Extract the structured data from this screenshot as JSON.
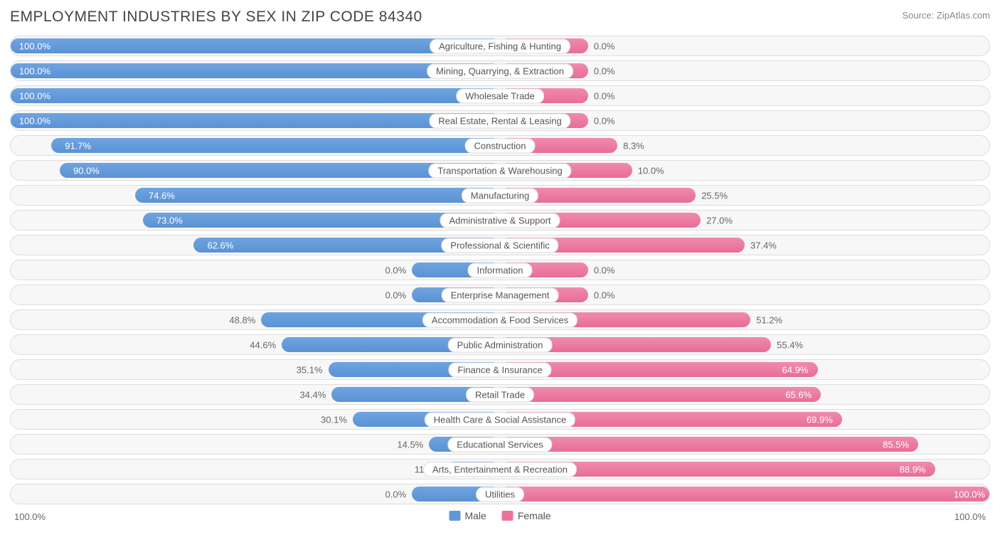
{
  "title": "EMPLOYMENT INDUSTRIES BY SEX IN ZIP CODE 84340",
  "source": "Source: ZipAtlas.com",
  "colors": {
    "male": "#6197d6",
    "female": "#ea739b",
    "row_bg": "#f7f7f7",
    "row_border": "#dddddd",
    "text": "#666666",
    "title_text": "#444444"
  },
  "axis": {
    "left": "100.0%",
    "right": "100.0%"
  },
  "legend": [
    {
      "label": "Male",
      "color": "#6197d6"
    },
    {
      "label": "Female",
      "color": "#ea739b"
    }
  ],
  "default_bar_pct": 18,
  "rows": [
    {
      "category": "Agriculture, Fishing & Hunting",
      "male": 100.0,
      "female": 0.0,
      "female_bar": 18
    },
    {
      "category": "Mining, Quarrying, & Extraction",
      "male": 100.0,
      "female": 0.0,
      "female_bar": 18
    },
    {
      "category": "Wholesale Trade",
      "male": 100.0,
      "female": 0.0,
      "female_bar": 18
    },
    {
      "category": "Real Estate, Rental & Leasing",
      "male": 100.0,
      "female": 0.0,
      "female_bar": 18
    },
    {
      "category": "Construction",
      "male": 91.7,
      "female": 8.3,
      "female_bar": 24
    },
    {
      "category": "Transportation & Warehousing",
      "male": 90.0,
      "female": 10.0,
      "female_bar": 27
    },
    {
      "category": "Manufacturing",
      "male": 74.6,
      "female": 25.5,
      "female_bar": 40
    },
    {
      "category": "Administrative & Support",
      "male": 73.0,
      "female": 27.0,
      "female_bar": 41
    },
    {
      "category": "Professional & Scientific",
      "male": 62.6,
      "female": 37.4,
      "female_bar": 50
    },
    {
      "category": "Information",
      "male": 0.0,
      "female": 0.0,
      "male_bar": 18,
      "female_bar": 18
    },
    {
      "category": "Enterprise Management",
      "male": 0.0,
      "female": 0.0,
      "male_bar": 18,
      "female_bar": 18
    },
    {
      "category": "Accommodation & Food Services",
      "male": 48.8,
      "female": 51.2
    },
    {
      "category": "Public Administration",
      "male": 44.6,
      "female": 55.4
    },
    {
      "category": "Finance & Insurance",
      "male": 35.1,
      "female": 64.9
    },
    {
      "category": "Retail Trade",
      "male": 34.4,
      "female": 65.6
    },
    {
      "category": "Health Care & Social Assistance",
      "male": 30.1,
      "female": 69.9
    },
    {
      "category": "Educational Services",
      "male": 14.5,
      "female": 85.5
    },
    {
      "category": "Arts, Entertainment & Recreation",
      "male": 11.1,
      "female": 88.9
    },
    {
      "category": "Utilities",
      "male": 0.0,
      "female": 100.0,
      "male_bar": 18
    }
  ]
}
